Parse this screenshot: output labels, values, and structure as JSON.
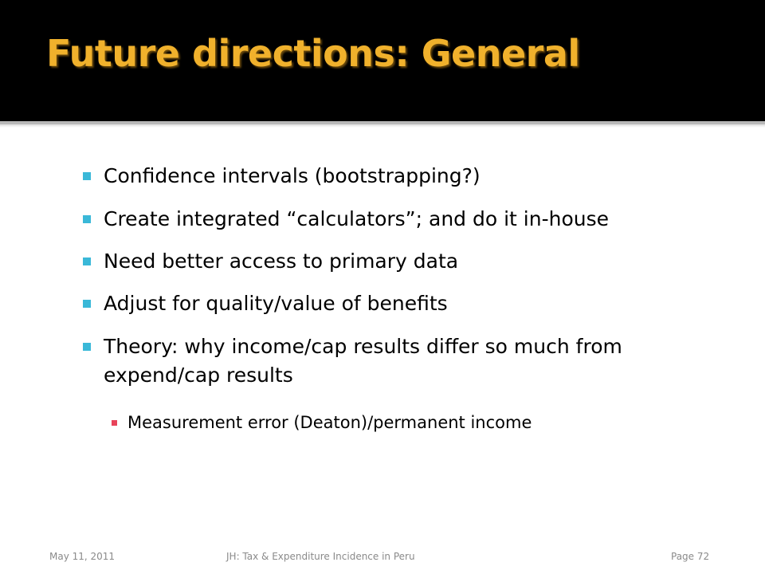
{
  "slide": {
    "title": "Future directions: General",
    "bullets": [
      "Confidence intervals (bootstrapping?)",
      "Create integrated “calculators”; and do it in-house",
      "Need better access to primary data",
      "Adjust for quality/value of benefits",
      "Theory: why income/cap results differ so much from expend/cap results"
    ],
    "sub_bullets": [
      "Measurement error (Deaton)/permanent income"
    ]
  },
  "footer": {
    "date": "May 11, 2011",
    "center_text": "JH: Tax & Expenditure Incidence in Peru",
    "page": "Page 72"
  },
  "colors": {
    "title_bar": "#000000",
    "title_text": "#f0b12c",
    "bullet_marker": "#3ab8d8",
    "sub_bullet_marker": "#e8435a",
    "footer_text": "#8a8a8a"
  }
}
